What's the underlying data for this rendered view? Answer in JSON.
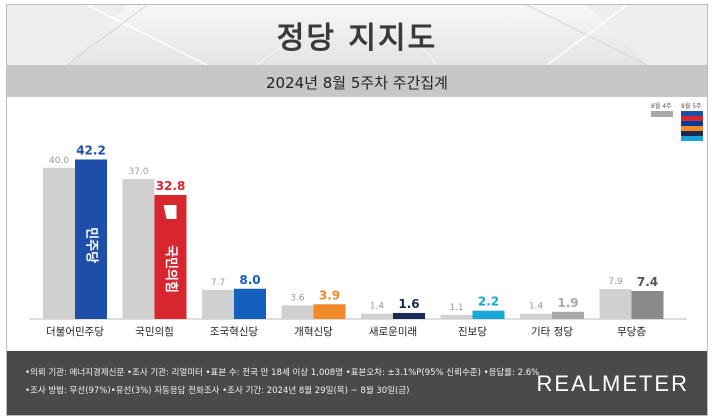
{
  "title": "정당 지지도",
  "subtitle": "2024년 8월 5주차 주간집계",
  "legend": [
    {
      "label": "8월 4주",
      "color": "#a8a8a8"
    },
    {
      "label": "8월 5주",
      "colors": [
        "#1e4fa8",
        "#d7262e",
        "#003d9a",
        "#f08a2a",
        "#1a2a55",
        "#19a7d6"
      ]
    }
  ],
  "chart_data": {
    "type": "bar",
    "title": "정당 지지도",
    "subtitle": "2024년 8월 5주차 주간집계",
    "xlabel": "",
    "ylabel": "",
    "ylim": [
      0,
      50
    ],
    "grid": false,
    "legend_position": "top-right",
    "categories": [
      "더불어민주당",
      "국민의힘",
      "조국혁신당",
      "개혁신당",
      "새로운미래",
      "진보당",
      "기타 정당",
      "무당층"
    ],
    "series": [
      {
        "name": "8월 4주",
        "values": [
          40.0,
          37.0,
          7.7,
          3.6,
          1.4,
          1.1,
          1.4,
          7.9
        ],
        "color": "#d0d0d0"
      },
      {
        "name": "8월 5주",
        "values": [
          42.2,
          32.8,
          8.0,
          3.9,
          1.6,
          2.2,
          1.9,
          7.4
        ],
        "colors": [
          "#1e4fa8",
          "#d7262e",
          "#1560bd",
          "#f08a2a",
          "#1a2a55",
          "#19a7d6",
          "#a8a8a8",
          "#8a8a8a"
        ],
        "label_colors": [
          "#1e4fa8",
          "#d7262e",
          "#1560bd",
          "#f08a2a",
          "#1a2a55",
          "#19a7d6",
          "#a8a8a8",
          "#555555"
        ]
      }
    ],
    "bar_logos": [
      {
        "index": 0,
        "text": "민주당"
      },
      {
        "index": 1,
        "text": "국민의힘"
      }
    ]
  },
  "footer": {
    "line1": "•의뢰 기관: 에너지경제신문 •조사 기관: 리얼미터 •표본 수: 전국 만 18세 이상 1,008명 •표본오차: ±3.1%P(95% 신뢰수준) •응답률: 2.6%",
    "line2": "•조사 방법: 무선(97%)•유선(3%) 자동응답 전화조사 •조사 기간: 2024년 8월 29일(목) ~ 8월 30일(금)",
    "brand": "REALMETER"
  }
}
